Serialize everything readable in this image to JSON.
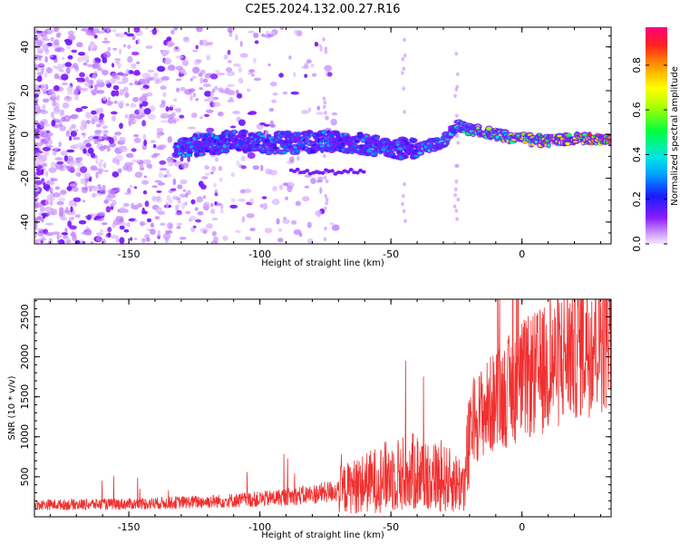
{
  "title": "C2E5.2024.132.00.27.R16",
  "chart_data": [
    {
      "type": "heatmap",
      "name": "spectrogram",
      "xlabel": "Height of straight line (km)",
      "ylabel": "Frequency (Hz)",
      "xlim": [
        -186,
        34
      ],
      "ylim": [
        -50,
        49
      ],
      "xticks": [
        -150,
        -100,
        -50,
        0
      ],
      "yticks": [
        -40,
        -20,
        0,
        20,
        40
      ],
      "colorbar": {
        "label": "Normalized spectral amplitude",
        "range": [
          0.0,
          0.97
        ],
        "ticks": [
          0.0,
          0.2,
          0.4,
          0.6,
          0.8
        ]
      },
      "ridge": [
        {
          "x": -132,
          "y": -6
        },
        {
          "x": -110,
          "y": -3
        },
        {
          "x": -90,
          "y": -4
        },
        {
          "x": -70,
          "y": -3
        },
        {
          "x": -50,
          "y": -6
        },
        {
          "x": -40,
          "y": -7
        },
        {
          "x": -30,
          "y": -3
        },
        {
          "x": -25,
          "y": 4
        },
        {
          "x": -20,
          "y": 2
        },
        {
          "x": -10,
          "y": 0
        },
        {
          "x": 0,
          "y": -2
        },
        {
          "x": 10,
          "y": -3
        },
        {
          "x": 20,
          "y": -2
        },
        {
          "x": 34,
          "y": -2
        }
      ]
    },
    {
      "type": "line",
      "name": "snr",
      "xlabel": "Height of straight line (km)",
      "ylabel": "SNR (10 * v/v)",
      "xlim": [
        -186,
        34
      ],
      "ylim": [
        0,
        2720
      ],
      "xticks": [
        -150,
        -100,
        -50,
        0
      ],
      "yticks": [
        500,
        1000,
        1500,
        2000,
        2500
      ],
      "color": "#f03030",
      "series": [
        {
          "name": "SNR",
          "x": [
            -186,
            -150,
            -120,
            -100,
            -80,
            -70,
            -60,
            -50,
            -40,
            -30,
            -22,
            -19,
            -10,
            0,
            10,
            20,
            34
          ],
          "values": [
            150,
            160,
            190,
            220,
            280,
            330,
            420,
            520,
            560,
            480,
            400,
            1200,
            1450,
            1700,
            1850,
            2150,
            2400
          ]
        }
      ]
    }
  ],
  "colors": {
    "line": "#f03030",
    "text": "#000000"
  }
}
